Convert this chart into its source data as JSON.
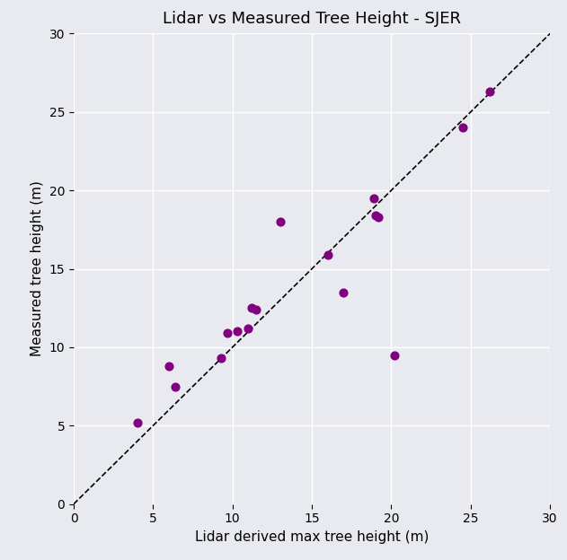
{
  "title": "Lidar vs Measured Tree Height - SJER",
  "xlabel": "Lidar derived max tree height (m)",
  "ylabel": "Measured tree height (m)",
  "xlim": [
    0,
    30
  ],
  "ylim": [
    0,
    30
  ],
  "xticks": [
    0,
    5,
    10,
    15,
    20,
    25,
    30
  ],
  "yticks": [
    0,
    5,
    10,
    15,
    20,
    25,
    30
  ],
  "scatter_x": [
    4.0,
    6.0,
    6.4,
    9.3,
    9.7,
    10.3,
    11.0,
    11.2,
    11.5,
    13.0,
    16.0,
    17.0,
    18.9,
    19.0,
    19.2,
    20.2,
    24.5,
    26.2
  ],
  "scatter_y": [
    5.2,
    8.8,
    7.5,
    9.3,
    10.9,
    11.0,
    11.2,
    12.5,
    12.4,
    18.0,
    15.9,
    13.5,
    19.5,
    18.4,
    18.3,
    9.5,
    24.0,
    26.3
  ],
  "scatter_color": "#800080",
  "scatter_size": 40,
  "line_color": "black",
  "line_style": "--",
  "line_width": 1.2,
  "background_color": "#e8eaf0",
  "fig_background_color": "#e8eaf0",
  "grid_color": "white",
  "title_fontsize": 13,
  "label_fontsize": 11,
  "tick_fontsize": 10
}
